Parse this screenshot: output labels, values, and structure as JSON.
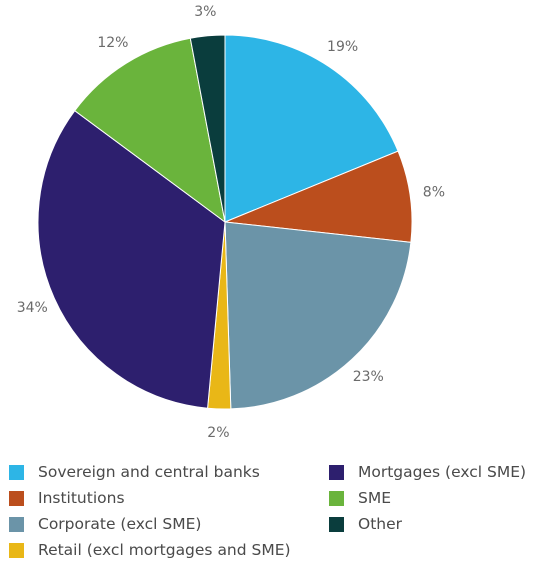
{
  "chart_data": {
    "type": "pie",
    "title": "",
    "slices": [
      {
        "label": "Sovereign and central banks",
        "value": 19,
        "display": "19%",
        "color": "#2db5e6"
      },
      {
        "label": "Institutions",
        "value": 8,
        "display": "8%",
        "color": "#bb4e1d"
      },
      {
        "label": "Corporate (excl SME)",
        "value": 23,
        "display": "23%",
        "color": "#6b94a8"
      },
      {
        "label": "Retail (excl mortgages and SME)",
        "value": 2,
        "display": "2%",
        "color": "#e9b717"
      },
      {
        "label": "Mortgages (excl SME)",
        "value": 34,
        "display": "34%",
        "color": "#2d1f6e"
      },
      {
        "label": "SME",
        "value": 12,
        "display": "12%",
        "color": "#6ab43c"
      },
      {
        "label": "Other",
        "value": 3,
        "display": "3%",
        "color": "#0a3d3d"
      }
    ],
    "legend": {
      "placement": "bottom",
      "items": [
        "Sovereign and central banks",
        "Institutions",
        "Corporate (excl SME)",
        "Retail (excl mortgages and SME)",
        "Mortgages (excl SME)",
        "SME",
        "Other"
      ]
    }
  }
}
